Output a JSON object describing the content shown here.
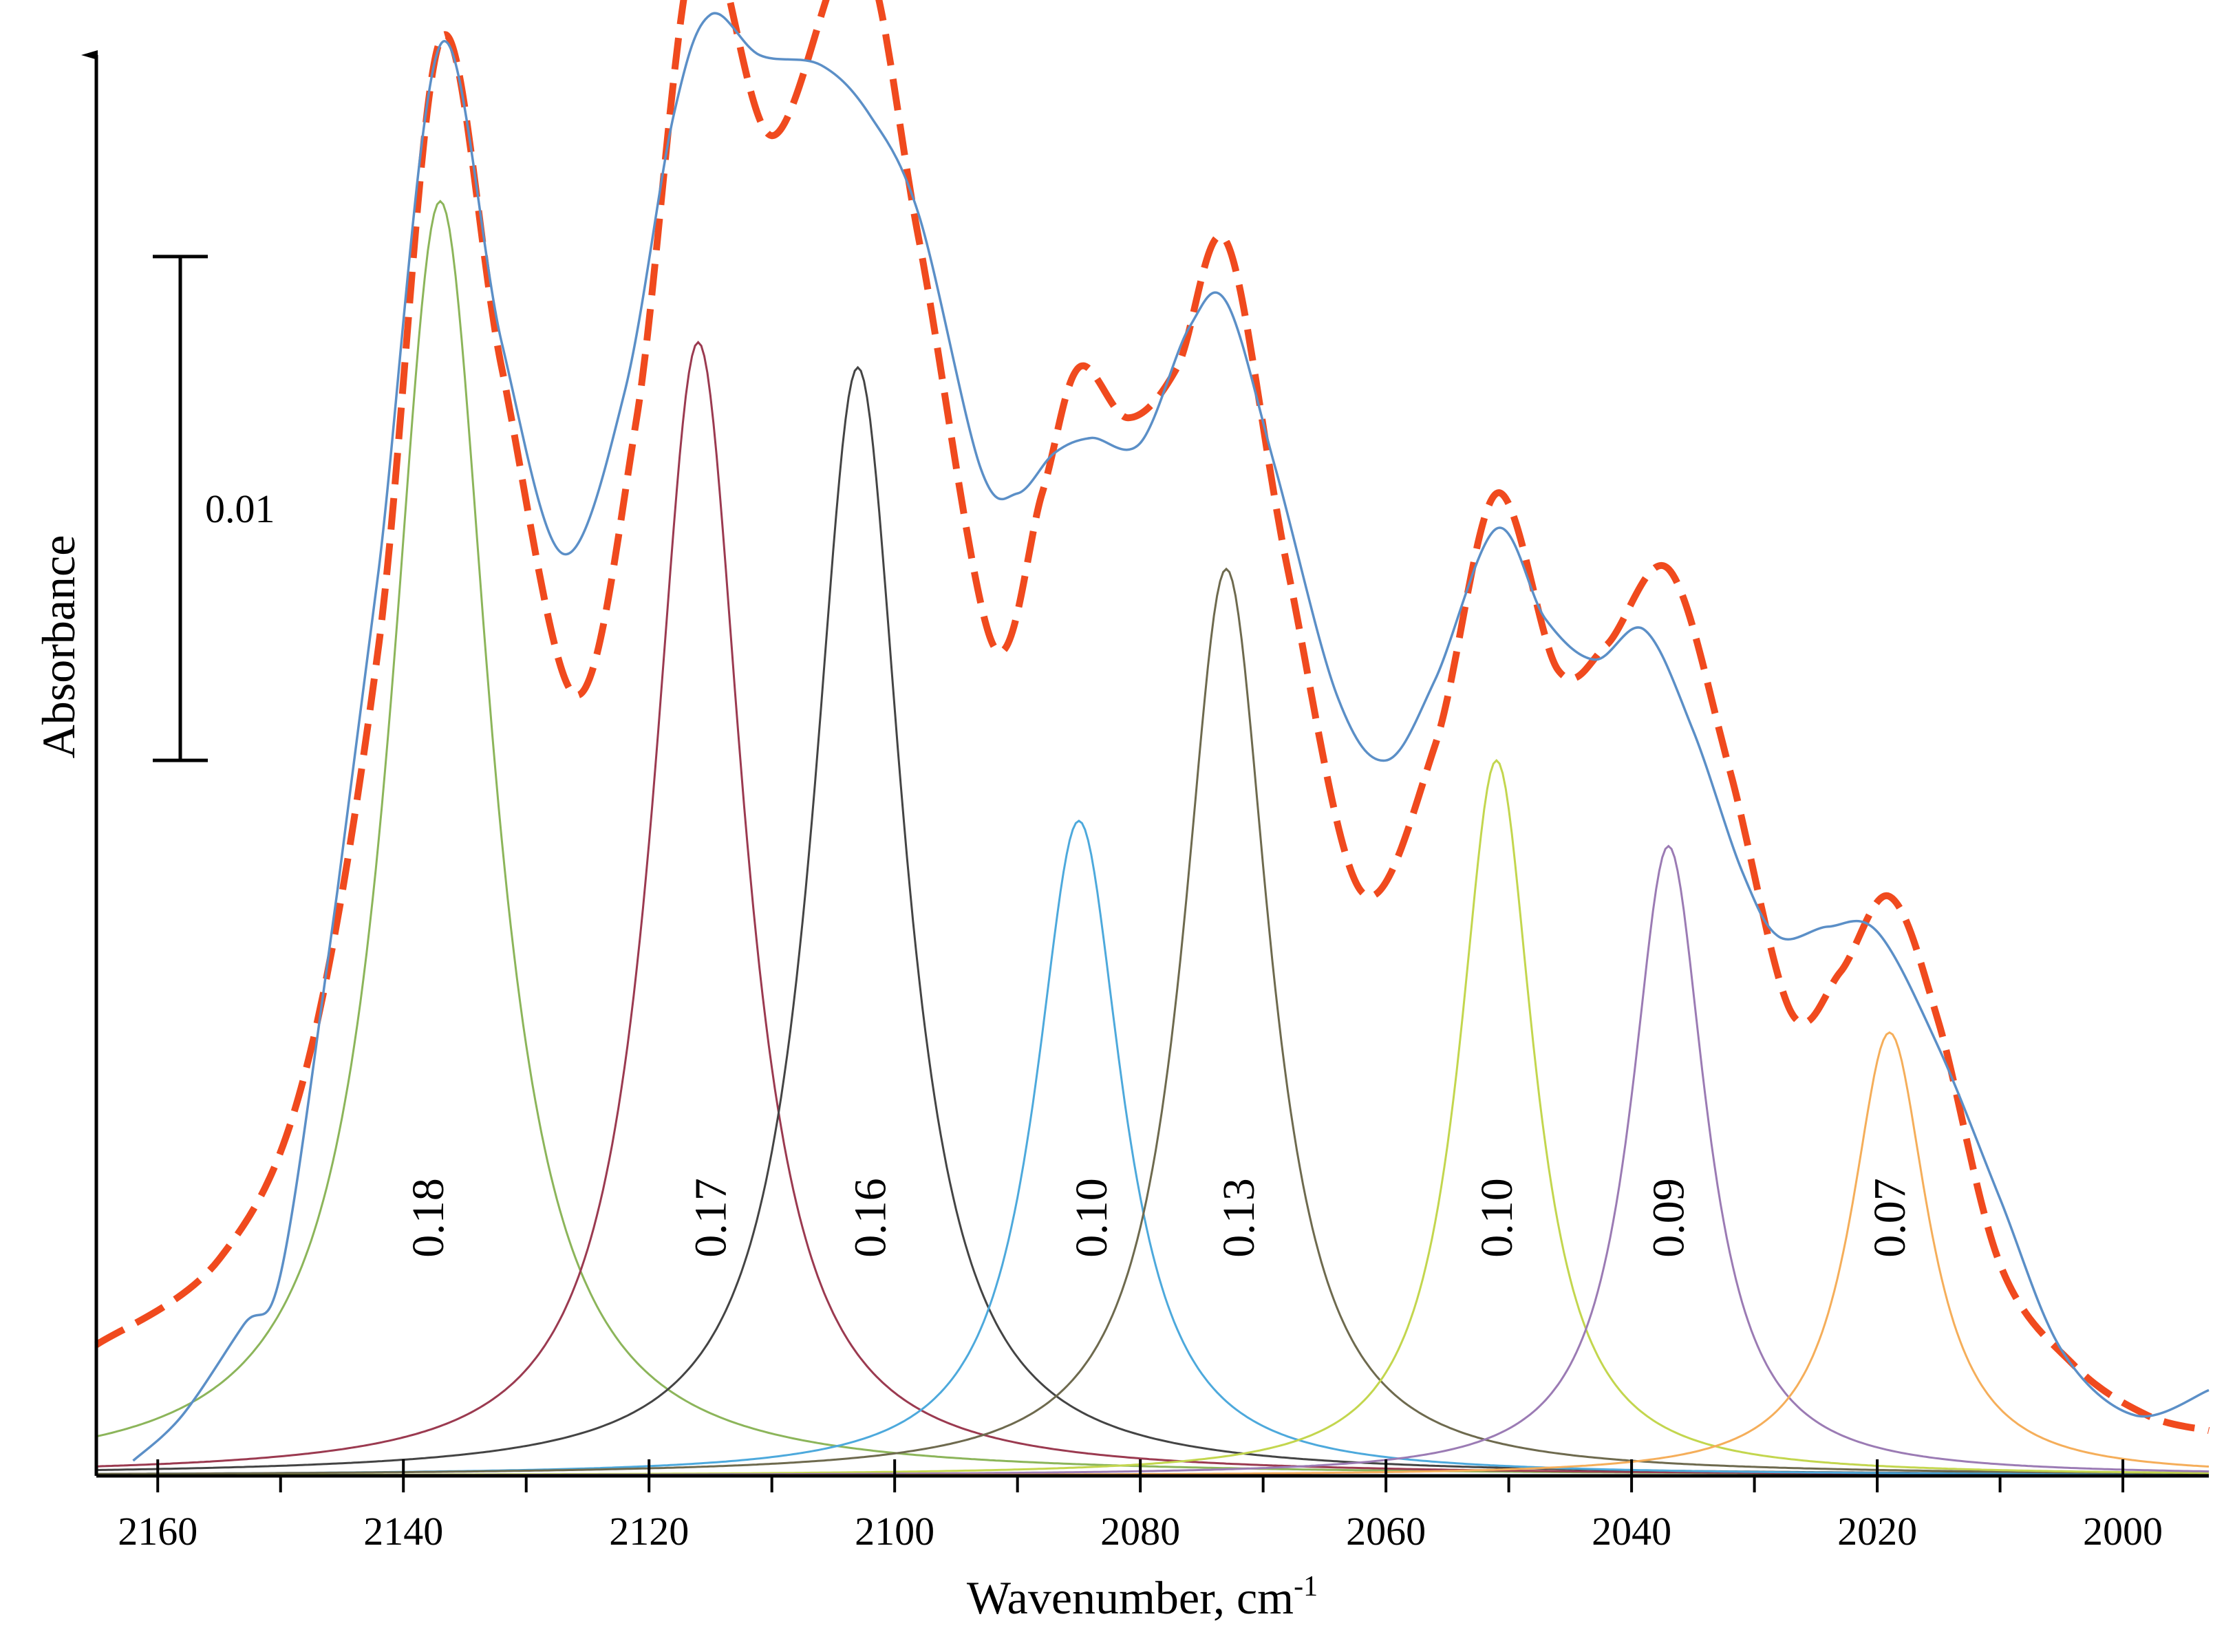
{
  "chart_data": {
    "type": "line",
    "title": "",
    "xlabel": "Wavenumber, cm",
    "xlabel_superscript": "-1",
    "ylabel": "Absorbance",
    "x_reversed": true,
    "xlim": [
      2165,
      1993
    ],
    "ylim": [
      0,
      0.0282
    ],
    "x_ticks": [
      2160,
      2140,
      2120,
      2100,
      2080,
      2060,
      2040,
      2020,
      2000
    ],
    "x_tick_labels": [
      "2160",
      "2140",
      "2120",
      "2100",
      "2080",
      "2060",
      "2040",
      "2020",
      "2000"
    ],
    "x_minor_ticks": [
      2150,
      2130,
      2110,
      2090,
      2070,
      2050,
      2030,
      2010
    ],
    "scale_bar": {
      "label": "0.01",
      "value": 0.01,
      "y_from": 0.0142,
      "y_to": 0.0242
    },
    "grid": false,
    "legend": "none",
    "components": [
      {
        "center": 2137,
        "height": 0.0253,
        "hwhm": 5.0,
        "color": "#8cb55a",
        "label": "0.18",
        "label_x": 2138
      },
      {
        "center": 2116,
        "height": 0.0225,
        "hwhm": 4.5,
        "color": "#9b3a50",
        "label": "0.17",
        "label_x": 2115
      },
      {
        "center": 2103,
        "height": 0.022,
        "hwhm": 4.5,
        "color": "#444444",
        "label": "0.16",
        "label_x": 2102
      },
      {
        "center": 2085,
        "height": 0.013,
        "hwhm": 4.3,
        "color": "#4da9dc",
        "label": "0.10",
        "label_x": 2084
      },
      {
        "center": 2073,
        "height": 0.018,
        "hwhm": 4.3,
        "color": "#6e6a4e",
        "label": "0.13",
        "label_x": 2072
      },
      {
        "center": 2051,
        "height": 0.0142,
        "hwhm": 3.7,
        "color": "#c3d64e",
        "label": "0.10",
        "label_x": 2051
      },
      {
        "center": 2037,
        "height": 0.0125,
        "hwhm": 3.7,
        "color": "#9b7bb4",
        "label": "0.09",
        "label_x": 2037
      },
      {
        "center": 2019,
        "height": 0.0088,
        "hwhm": 3.8,
        "color": "#f5ae5a",
        "label": "0.07",
        "label_x": 2019
      }
    ],
    "series": [
      {
        "style": "dashed",
        "color": "#f04a1e",
        "x": [
          2165,
          2155,
          2148,
          2142,
          2137,
          2132,
          2126,
          2121,
          2116,
          2110,
          2103,
          2098,
          2092,
          2088,
          2085,
          2081,
          2077,
          2073,
          2068,
          2062,
          2056,
          2051,
          2046,
          2042,
          2037,
          2032,
          2027,
          2023,
          2019,
          2015,
          2010,
          2004,
          1998,
          1993
        ],
        "y": [
          0.0026,
          0.0043,
          0.008,
          0.0165,
          0.0285,
          0.022,
          0.0155,
          0.021,
          0.0306,
          0.0266,
          0.0304,
          0.0245,
          0.0165,
          0.0195,
          0.022,
          0.021,
          0.022,
          0.0245,
          0.018,
          0.0116,
          0.0145,
          0.0195,
          0.016,
          0.0165,
          0.018,
          0.014,
          0.0092,
          0.01,
          0.0115,
          0.009,
          0.0042,
          0.0022,
          0.0012,
          0.0009
        ]
      },
      {
        "style": "solid",
        "color": "#5b8fc7",
        "x": [
          2162,
          2158,
          2153,
          2150,
          2146,
          2142,
          2137,
          2132,
          2127,
          2122,
          2118,
          2115,
          2111,
          2106,
          2102,
          2098,
          2093,
          2090,
          2087,
          2084,
          2080,
          2076,
          2073,
          2069,
          2064,
          2060,
          2056,
          2051,
          2047,
          2043,
          2039,
          2035,
          2031,
          2028,
          2024,
          2020,
          2015,
          2010,
          2005,
          1999,
          1993
        ],
        "y": [
          0.0003,
          0.0012,
          0.003,
          0.004,
          0.0105,
          0.018,
          0.0284,
          0.0225,
          0.0183,
          0.0215,
          0.027,
          0.029,
          0.0282,
          0.028,
          0.027,
          0.025,
          0.02,
          0.0195,
          0.0203,
          0.0206,
          0.0205,
          0.0228,
          0.0233,
          0.02,
          0.0155,
          0.0142,
          0.0158,
          0.0188,
          0.017,
          0.0162,
          0.0168,
          0.0148,
          0.012,
          0.0107,
          0.0109,
          0.0108,
          0.0085,
          0.0055,
          0.0025,
          0.0012,
          0.0017
        ]
      }
    ]
  }
}
